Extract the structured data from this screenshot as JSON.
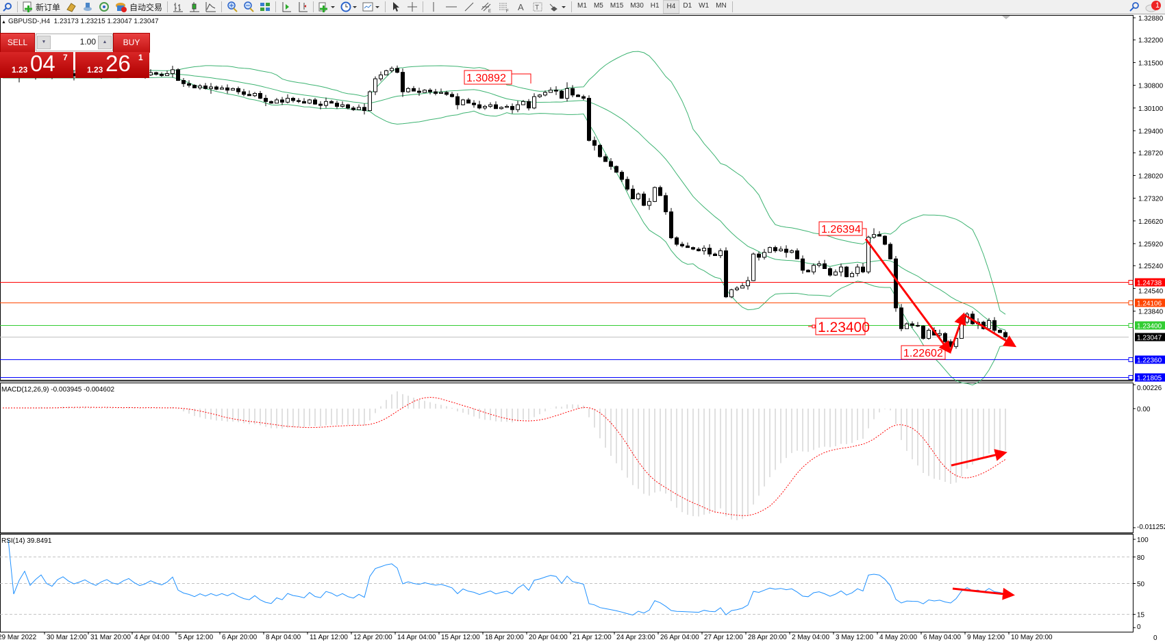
{
  "toolbar": {
    "new_order_label": "新订单",
    "auto_trading_label": "自动交易",
    "icons": [
      "zoom-icon",
      "new-order-icon",
      "history-icon",
      "market-watch-icon",
      "signals-icon",
      "auto-trading-icon",
      "bar-chart-icon",
      "candlestick-icon",
      "line-chart-icon",
      "zoom-in-icon",
      "zoom-out-icon",
      "tile-windows-icon",
      "autoscroll-icon",
      "chart-shift-icon",
      "indicators-icon",
      "periods-icon",
      "templates-icon",
      "cursor-icon",
      "crosshair-icon",
      "vertical-line-icon",
      "horizontal-line-icon",
      "trendline-icon",
      "equidistant-channel-icon",
      "fibonacci-icon",
      "text-icon",
      "text-label-icon",
      "arrows-icon"
    ],
    "timeframes": [
      "M1",
      "M5",
      "M15",
      "M30",
      "H1",
      "H4",
      "D1",
      "W1",
      "MN"
    ],
    "selected_timeframe": "H4",
    "notification_count": "1"
  },
  "chart_header": {
    "symbol": "GBPUSD-,H4",
    "ohlc": "1.23173 1.23215 1.23047 1.23047"
  },
  "one_click_trading": {
    "sell_label": "SELL",
    "buy_label": "BUY",
    "volume": "1.00",
    "sell_price": {
      "prefix": "1.23",
      "big": "04",
      "sup": "7"
    },
    "buy_price": {
      "prefix": "1.23",
      "big": "26",
      "sup": "1"
    }
  },
  "chart_data": {
    "type": "candlestick",
    "symbol": "GBPUSD",
    "timeframe": "H4",
    "price_axis": {
      "range": [
        1.21805,
        1.3288
      ],
      "ticks": [
        "1.32880",
        "1.32200",
        "1.31500",
        "1.30800",
        "1.30100",
        "1.29400",
        "1.28720",
        "1.28020",
        "1.27320",
        "1.26620",
        "1.25920",
        "1.25240",
        "1.24540",
        "1.23840"
      ]
    },
    "time_labels": [
      "29 Mar 2022",
      "30 Mar 12:00",
      "31 Mar 20:00",
      "4 Apr 04:00",
      "5 Apr 12:00",
      "6 Apr 20:00",
      "8 Apr 04:00",
      "11 Apr 12:00",
      "12 Apr 20:00",
      "14 Apr 04:00",
      "15 Apr 12:00",
      "18 Apr 20:00",
      "20 Apr 04:00",
      "21 Apr 12:00",
      "24 Apr 23:00",
      "26 Apr 04:00",
      "27 Apr 12:00",
      "28 Apr 20:00",
      "2 May 04:00",
      "3 May 12:00",
      "4 May 20:00",
      "6 May 04:00",
      "9 May 12:00",
      "10 May 20:00"
    ],
    "closes": [
      1.311,
      1.3118,
      1.3105,
      1.3112,
      1.312,
      1.3108,
      1.3115,
      1.3122,
      1.311,
      1.3105,
      1.3118,
      1.3125,
      1.3116,
      1.3109,
      1.3114,
      1.312,
      1.3112,
      1.3106,
      1.3115,
      1.3121,
      1.3113,
      1.311,
      1.3118,
      1.3124,
      1.3115,
      1.3108,
      1.3112,
      1.3119,
      1.3114,
      1.311,
      1.3116,
      1.3128,
      1.3095,
      1.3085,
      1.308,
      1.3072,
      1.3078,
      1.307,
      1.3075,
      1.3068,
      1.3072,
      1.3065,
      1.307,
      1.306,
      1.3052,
      1.3048,
      1.3055,
      1.304,
      1.303,
      1.3025,
      1.3035,
      1.3028,
      1.304,
      1.3033,
      1.303,
      1.3025,
      1.3035,
      1.3022,
      1.3018,
      1.303,
      1.3025,
      1.3015,
      1.302,
      1.301,
      1.3005,
      1.3012,
      1.3002,
      1.306,
      1.31,
      1.3112,
      1.3125,
      1.3132,
      1.312,
      1.306,
      1.307,
      1.3062,
      1.3058,
      1.3065,
      1.306,
      1.3055,
      1.3058,
      1.3052,
      1.3045,
      1.302,
      1.3035,
      1.3025,
      1.302,
      1.301,
      1.3015,
      1.302,
      1.3008,
      1.3012,
      1.3015,
      1.3005,
      1.302,
      1.303,
      1.301,
      1.3045,
      1.305,
      1.3058,
      1.3065,
      1.3062,
      1.304,
      1.307,
      1.305,
      1.3045,
      1.304,
      1.291,
      1.2895,
      1.286,
      1.2845,
      1.283,
      1.2812,
      1.279,
      1.276,
      1.273,
      1.2745,
      1.271,
      1.2722,
      1.2765,
      1.274,
      1.269,
      1.261,
      1.259,
      1.2585,
      1.258,
      1.2575,
      1.257,
      1.2578,
      1.256,
      1.2555,
      1.257,
      1.2428,
      1.245,
      1.2455,
      1.2462,
      1.2478,
      1.256,
      1.255,
      1.2565,
      1.258,
      1.257,
      1.2575,
      1.2565,
      1.257,
      1.2545,
      1.251,
      1.2505,
      1.2525,
      1.253,
      1.2515,
      1.2495,
      1.2505,
      1.252,
      1.249,
      1.25,
      1.252,
      1.2505,
      1.2612,
      1.262,
      1.2615,
      1.259,
      1.2545,
      1.2394,
      1.233,
      1.2345,
      1.234,
      1.2338,
      1.23,
      1.2325,
      1.231,
      1.2315,
      1.229,
      1.2275,
      1.23,
      1.235,
      1.2375,
      1.2345,
      1.235,
      1.233,
      1.2355,
      1.2325,
      1.2318,
      1.23047
    ],
    "bollinger": {
      "period": 20,
      "deviation": 2,
      "color": "#3cb371"
    },
    "horizontal_lines": [
      {
        "price": "1.24738",
        "color": "#ff0000"
      },
      {
        "price": "1.24106",
        "color": "#ff4500"
      },
      {
        "price": "1.23400",
        "color": "#32cd32"
      },
      {
        "price": "1.23047",
        "color": "#000000",
        "line_color": "#c0c0c0"
      },
      {
        "price": "1.22360",
        "color": "#0000ff"
      },
      {
        "price": "1.21805",
        "color": "#0000ff"
      }
    ],
    "annotations": [
      {
        "text": "1.30892",
        "kind": "high"
      },
      {
        "text": "1.26394",
        "kind": "high"
      },
      {
        "text": "1.23400",
        "kind": "level"
      },
      {
        "text": "1.22602",
        "kind": "low"
      }
    ],
    "annotation_color": "#ff0000",
    "macd": {
      "label": "MACD(12,26,9) -0.003945 -0.004602",
      "params": [
        12,
        26,
        9
      ],
      "axis_ticks": [
        "0.00226",
        "0.00",
        "-0.011252"
      ],
      "range": [
        -0.011252,
        0.00226
      ],
      "histogram_color": "#c0c0c0",
      "signal_color": "#ff0000"
    },
    "rsi": {
      "label": "RSI(14) 39.8491",
      "period": 14,
      "axis_ticks": [
        "100",
        "80",
        "50",
        "15",
        "0"
      ],
      "levels": [
        80,
        50,
        15
      ],
      "color": "#1e90ff"
    },
    "time_axis_corner": "0"
  }
}
